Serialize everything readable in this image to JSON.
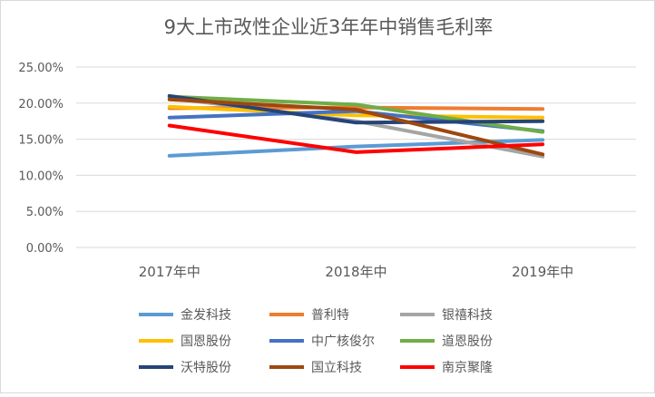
{
  "chart_data": {
    "type": "line",
    "title": "9大上市改性企业近3年年中销售毛利率",
    "categories": [
      "2017年中",
      "2018年中",
      "2019年中"
    ],
    "yticks": [
      "0.00%",
      "5.00%",
      "10.00%",
      "15.00%",
      "20.00%",
      "25.00%"
    ],
    "ylim": [
      0,
      25
    ],
    "grid": true,
    "legend_position": "bottom",
    "series": [
      {
        "name": "金发科技",
        "color": "#5b9bd5",
        "values": [
          12.7,
          14.0,
          14.9
        ]
      },
      {
        "name": "普利特",
        "color": "#ed7d31",
        "values": [
          19.3,
          19.4,
          19.2
        ]
      },
      {
        "name": "银禧科技",
        "color": "#a5a5a5",
        "values": [
          20.7,
          17.5,
          12.6
        ]
      },
      {
        "name": "国恩股份",
        "color": "#ffc000",
        "values": [
          19.5,
          18.3,
          18.0
        ]
      },
      {
        "name": "中广核俊尔",
        "color": "#4472c4",
        "values": [
          18.0,
          18.9,
          16.1
        ]
      },
      {
        "name": "道恩股份",
        "color": "#70ad47",
        "values": [
          20.9,
          19.8,
          16.0
        ]
      },
      {
        "name": "沃特股份",
        "color": "#264478",
        "values": [
          21.0,
          17.3,
          17.5
        ]
      },
      {
        "name": "国立科技",
        "color": "#9e480e",
        "values": [
          20.5,
          19.1,
          12.9
        ]
      },
      {
        "name": "南京聚隆",
        "color": "#ff0000",
        "values": [
          16.9,
          13.2,
          14.3
        ]
      }
    ]
  }
}
